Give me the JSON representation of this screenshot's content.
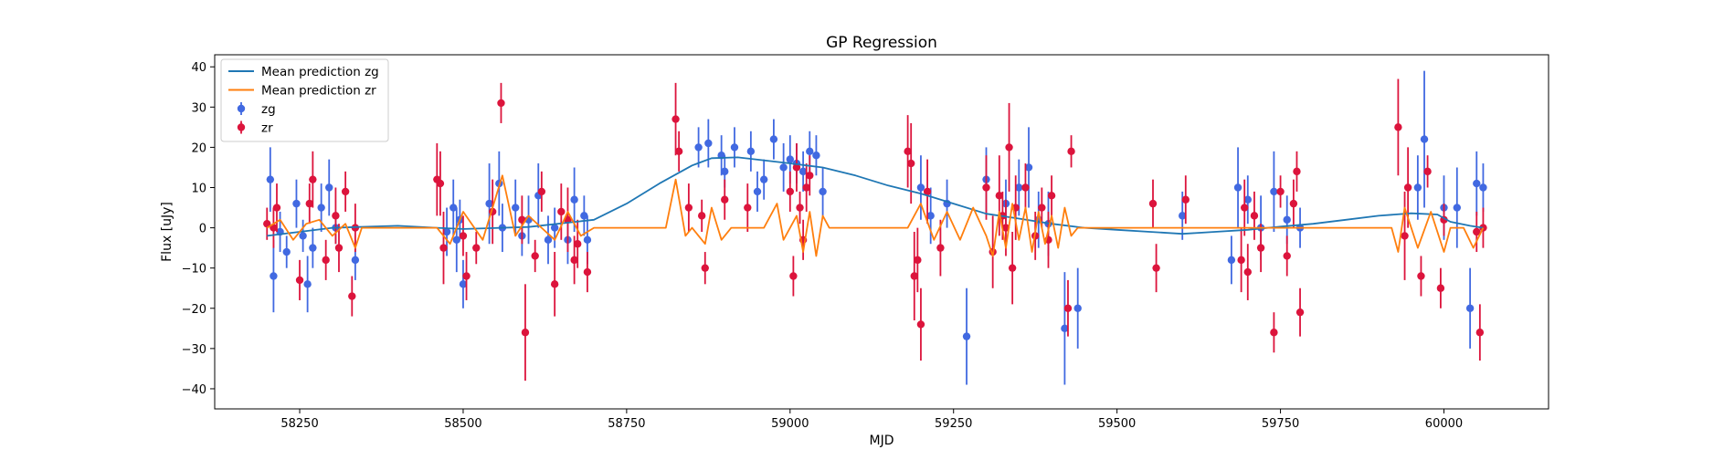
{
  "chart_data": {
    "type": "scatter",
    "title": "GP Regression",
    "xlabel": "MJD",
    "ylabel": "Flux [uJy]",
    "xlim": [
      58120,
      60160
    ],
    "ylim": [
      -45,
      43
    ],
    "xticks": [
      58250,
      58500,
      58750,
      59000,
      59250,
      59500,
      59750,
      60000
    ],
    "yticks": [
      -40,
      -30,
      -20,
      -10,
      0,
      10,
      20,
      30,
      40
    ],
    "grid": false,
    "legend_position": "top-left",
    "legend": [
      {
        "label": "Mean prediction zg",
        "kind": "line",
        "color": "#1f77b4"
      },
      {
        "label": "Mean prediction zr",
        "kind": "line",
        "color": "#ff7f0e"
      },
      {
        "label": "zg",
        "kind": "errorbar",
        "color": "#4169e1"
      },
      {
        "label": "zr",
        "kind": "errorbar",
        "color": "#dc143c"
      }
    ],
    "series": [
      {
        "name": "Mean prediction zg",
        "kind": "line",
        "color": "#1f77b4",
        "x": [
          58200,
          58300,
          58400,
          58460,
          58500,
          58600,
          58700,
          58750,
          58800,
          58850,
          58880,
          58920,
          59000,
          59050,
          59100,
          59150,
          59200,
          59250,
          59300,
          59350,
          59400,
          59450,
          59500,
          59550,
          59600,
          59650,
          59700,
          59750,
          59800,
          59850,
          59900,
          59950,
          59990,
          60010,
          60040,
          60060
        ],
        "y": [
          -2,
          0,
          0.5,
          0,
          -0.3,
          0.2,
          2,
          6,
          11,
          15.5,
          17.3,
          17.5,
          16,
          15,
          13,
          10.5,
          8.5,
          6,
          3.5,
          2.3,
          1,
          0,
          -0.5,
          -1,
          -1.5,
          -1,
          -0.5,
          0.3,
          1,
          2,
          3,
          3.6,
          3.3,
          1.5,
          0.5,
          0
        ]
      },
      {
        "name": "Mean prediction zr",
        "kind": "line",
        "color": "#ff7f0e",
        "x": [
          58200,
          58220,
          58240,
          58260,
          58280,
          58300,
          58320,
          58335,
          58345,
          58460,
          58480,
          58500,
          58530,
          58560,
          58580,
          58600,
          58620,
          58640,
          58660,
          58680,
          58700,
          58810,
          58825,
          58840,
          58850,
          58870,
          58880,
          58895,
          58910,
          58960,
          58980,
          58990,
          59010,
          59020,
          59030,
          59040,
          59050,
          59060,
          59180,
          59200,
          59220,
          59240,
          59260,
          59280,
          59300,
          59310,
          59320,
          59330,
          59340,
          59350,
          59360,
          59370,
          59380,
          59390,
          59400,
          59410,
          59420,
          59430,
          59440,
          59920,
          59930,
          59940,
          59960,
          59980,
          60000,
          60010,
          60030,
          60045,
          60060
        ],
        "y": [
          0,
          2,
          -3,
          1,
          2,
          -2,
          1,
          -5,
          0,
          0,
          -4,
          4,
          -3,
          13,
          -2,
          3,
          0,
          -3,
          4,
          -2,
          0,
          0,
          12,
          -2,
          0,
          -4,
          5,
          -3,
          0,
          0,
          6,
          -3,
          3,
          -6,
          4,
          -7,
          3,
          0,
          0,
          6,
          -3,
          4,
          -3,
          5,
          -2,
          -7,
          4,
          -5,
          6,
          -3,
          5,
          -6,
          4,
          -4,
          3,
          -5,
          5,
          -2,
          0,
          0,
          -6,
          5,
          -5,
          4,
          -6,
          0,
          0,
          -5,
          0
        ]
      },
      {
        "name": "zg",
        "kind": "errorbar",
        "color": "#4169e1",
        "x": [
          58205,
          58210,
          58220,
          58230,
          58245,
          58255,
          58262,
          58270,
          58283,
          58295,
          58305,
          58335,
          58475,
          58485,
          58490,
          58495,
          58500,
          58540,
          58555,
          58560,
          58580,
          58590,
          58600,
          58615,
          58630,
          58640,
          58660,
          58670,
          58685,
          58690,
          58860,
          58875,
          58895,
          58900,
          58915,
          58940,
          58950,
          58960,
          58975,
          58990,
          59000,
          59010,
          59020,
          59030,
          59040,
          59050,
          59200,
          59215,
          59240,
          59270,
          59300,
          59330,
          59350,
          59365,
          59380,
          59395,
          59420,
          59440,
          59600,
          59675,
          59685,
          59700,
          59720,
          59740,
          59760,
          59780,
          59960,
          59970,
          60000,
          60020,
          60040,
          60050,
          60060
        ],
        "y": [
          12,
          -12,
          -1,
          -6,
          6,
          -2,
          -14,
          -5,
          5,
          10,
          0,
          -8,
          -1,
          5,
          -3,
          2,
          -14,
          6,
          11,
          0,
          5,
          -2,
          2,
          8,
          -3,
          0,
          -3,
          7,
          3,
          -3,
          20,
          21,
          18,
          14,
          20,
          19,
          9,
          12,
          22,
          15,
          17,
          16,
          14,
          19,
          18,
          9,
          10,
          3,
          6,
          -27,
          12,
          6,
          10,
          15,
          2,
          1,
          -25,
          -20,
          3,
          -8,
          10,
          7,
          0,
          9,
          2,
          0,
          10,
          22,
          5,
          5,
          -20,
          11,
          10
        ],
        "err": [
          8,
          9,
          5,
          4,
          6,
          4,
          7,
          5,
          6,
          7,
          4,
          5,
          6,
          7,
          8,
          5,
          6,
          10,
          8,
          6,
          7,
          5,
          6,
          8,
          6,
          5,
          6,
          8,
          5,
          6,
          5,
          6,
          5,
          4,
          5,
          5,
          5,
          5,
          5,
          6,
          6,
          5,
          5,
          5,
          5,
          6,
          8,
          7,
          6,
          12,
          8,
          6,
          7,
          10,
          7,
          8,
          14,
          10,
          6,
          6,
          10,
          6,
          8,
          10,
          6,
          5,
          8,
          17,
          8,
          10,
          10,
          8,
          6
        ]
      },
      {
        "name": "zr",
        "kind": "errorbar",
        "color": "#dc143c",
        "x": [
          58200,
          58210,
          58215,
          58250,
          58265,
          58270,
          58290,
          58305,
          58310,
          58320,
          58330,
          58335,
          58460,
          58465,
          58470,
          58500,
          58505,
          58520,
          58545,
          58558,
          58590,
          58595,
          58610,
          58620,
          58640,
          58650,
          58660,
          58670,
          58675,
          58690,
          58825,
          58830,
          58845,
          58865,
          58870,
          58900,
          58935,
          59000,
          59005,
          59010,
          59015,
          59020,
          59025,
          59030,
          59180,
          59185,
          59190,
          59195,
          59200,
          59210,
          59230,
          59300,
          59310,
          59320,
          59325,
          59330,
          59335,
          59340,
          59345,
          59360,
          59375,
          59385,
          59395,
          59400,
          59425,
          59430,
          59555,
          59560,
          59605,
          59690,
          59695,
          59700,
          59710,
          59720,
          59740,
          59750,
          59760,
          59770,
          59775,
          59780,
          59930,
          59940,
          59945,
          59965,
          59975,
          59995,
          60000,
          60050,
          60055,
          60060
        ],
        "y": [
          1,
          0,
          5,
          -13,
          6,
          12,
          -8,
          3,
          -5,
          9,
          -17,
          0,
          12,
          11,
          -5,
          -2,
          -12,
          -5,
          4,
          31,
          2,
          -26,
          -7,
          9,
          -14,
          4,
          2,
          -8,
          -4,
          -11,
          27,
          19,
          5,
          3,
          -10,
          7,
          5,
          9,
          -12,
          15,
          5,
          -3,
          10,
          13,
          19,
          16,
          -12,
          -8,
          -24,
          9,
          -5,
          10,
          -6,
          8,
          3,
          0,
          20,
          -10,
          5,
          10,
          -2,
          5,
          -3,
          8,
          -20,
          19,
          6,
          -10,
          7,
          -8,
          5,
          -11,
          3,
          -5,
          -26,
          9,
          -7,
          6,
          14,
          -21,
          25,
          -2,
          10,
          -12,
          14,
          -15,
          2,
          -1,
          -26,
          0
        ],
        "err": [
          4,
          5,
          6,
          5,
          5,
          7,
          5,
          7,
          6,
          5,
          5,
          6,
          9,
          8,
          9,
          5,
          6,
          4,
          8,
          5,
          6,
          12,
          4,
          5,
          8,
          7,
          8,
          6,
          6,
          5,
          9,
          5,
          6,
          4,
          4,
          5,
          6,
          5,
          5,
          6,
          4,
          5,
          6,
          5,
          9,
          10,
          11,
          8,
          9,
          8,
          7,
          8,
          9,
          10,
          6,
          7,
          11,
          9,
          8,
          6,
          6,
          5,
          7,
          5,
          7,
          4,
          6,
          6,
          6,
          8,
          7,
          7,
          6,
          6,
          5,
          4,
          5,
          6,
          5,
          6,
          12,
          11,
          10,
          5,
          4,
          5,
          4,
          5,
          7,
          5
        ]
      }
    ]
  }
}
